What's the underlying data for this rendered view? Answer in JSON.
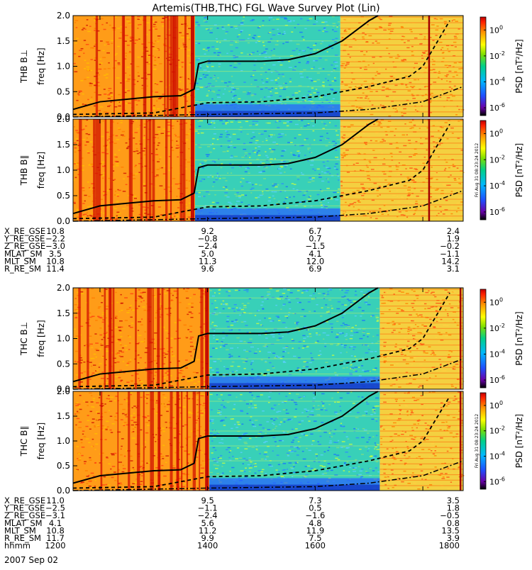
{
  "title": "Artemis(THB,THC) FGL Wave Survey Plot (Lin)",
  "date_label": "2007 Sep 02",
  "stamp": "Fri Aug 31 08:23:24 2012",
  "colorbar": {
    "label": "PSD [nT²/Hz]",
    "ticks": [
      {
        "exp": "0",
        "value": 1
      },
      {
        "exp": "-2",
        "value": 0.01
      },
      {
        "exp": "-4",
        "value": 0.0001
      },
      {
        "exp": "-6",
        "value": 1e-06
      }
    ]
  },
  "chart_data": [
    {
      "type": "heatmap",
      "probe": "THB",
      "component": "B⊥",
      "ylabel": "freq [Hz]",
      "panel_label": "THB B⊥",
      "ylim": [
        0,
        2
      ],
      "yticks": [
        "0.0",
        "0.5",
        "1.0",
        "1.5",
        "2.0"
      ],
      "xlim_hhmm": [
        1130,
        1845
      ],
      "fc_curve": {
        "x_hhmm": [
          1130,
          1200,
          1230,
          1300,
          1330,
          1345,
          1350,
          1400,
          1430,
          1500,
          1530,
          1600,
          1630,
          1700,
          1710
        ],
        "y": [
          0.15,
          0.3,
          0.35,
          0.4,
          0.42,
          0.55,
          1.05,
          1.1,
          1.1,
          1.1,
          1.13,
          1.25,
          1.5,
          1.9,
          2.0
        ]
      },
      "fc_half_curve": {
        "x_hhmm": [
          1130,
          1300,
          1400,
          1500,
          1600,
          1700,
          1745,
          1800,
          1830
        ],
        "y": [
          0.05,
          0.08,
          0.28,
          0.3,
          0.4,
          0.6,
          0.8,
          1.0,
          1.9
        ]
      },
      "fc_low_curve": {
        "x_hhmm": [
          1130,
          1400,
          1600,
          1700,
          1800,
          1845
        ],
        "y": [
          0.0,
          0.05,
          0.08,
          0.15,
          0.3,
          0.6
        ]
      }
    },
    {
      "type": "heatmap",
      "probe": "THB",
      "component": "B∥",
      "ylabel": "freq [Hz]",
      "panel_label": "THB B∥",
      "ylim": [
        0,
        2
      ],
      "yticks": [
        "0.0",
        "0.5",
        "1.0",
        "1.5",
        "2.0"
      ],
      "xlim_hhmm": [
        1130,
        1845
      ]
    },
    {
      "type": "heatmap",
      "probe": "THC",
      "component": "B⊥",
      "ylabel": "freq [Hz]",
      "panel_label": "THC B⊥",
      "ylim": [
        0,
        2
      ],
      "yticks": [
        "0.0",
        "0.5",
        "1.0",
        "1.5",
        "2.0"
      ],
      "xlim_hhmm": [
        1130,
        1845
      ]
    },
    {
      "type": "heatmap",
      "probe": "THC",
      "component": "B∥",
      "ylabel": "freq [Hz]",
      "panel_label": "THC B∥",
      "ylim": [
        0,
        2
      ],
      "yticks": [
        "0.0",
        "0.5",
        "1.0",
        "1.5",
        "2.0"
      ],
      "xlim_hhmm": [
        1130,
        1845
      ]
    }
  ],
  "orbit_tables": [
    {
      "rows": [
        {
          "name": "X_RE_GSE",
          "values": [
            "10.8",
            "9.2",
            "6.7",
            "2.4"
          ]
        },
        {
          "name": "Y_RE_GSE",
          "values": [
            "−2.2",
            "−0.8",
            "0.7",
            "1.9"
          ]
        },
        {
          "name": "Z_RE_GSE",
          "values": [
            "−3.0",
            "−2.4",
            "−1.5",
            "−0.2"
          ]
        },
        {
          "name": "MLAT_SM",
          "values": [
            "3.5",
            "5.0",
            "4.1",
            "−1.1"
          ]
        },
        {
          "name": "MLT_SM",
          "values": [
            "10.8",
            "11.3",
            "12.0",
            "14.2"
          ]
        },
        {
          "name": "R_RE_SM",
          "values": [
            "11.4",
            "9.6",
            "6.9",
            "3.1"
          ]
        }
      ]
    },
    {
      "rows": [
        {
          "name": "X_RE_GSE",
          "values": [
            "11.0",
            "9.5",
            "7.3",
            "3.5"
          ]
        },
        {
          "name": "Y_RE_GSE",
          "values": [
            "−2.5",
            "−1.1",
            "0.5",
            "1.8"
          ]
        },
        {
          "name": "Z_RE_GSE",
          "values": [
            "−3.1",
            "−2.4",
            "−1.6",
            "−0.5"
          ]
        },
        {
          "name": "MLAT_SM",
          "values": [
            "4.1",
            "5.6",
            "4.8",
            "0.8"
          ]
        },
        {
          "name": "MLT_SM",
          "values": [
            "10.8",
            "11.2",
            "11.9",
            "13.5"
          ]
        },
        {
          "name": "R_RE_SM",
          "values": [
            "11.7",
            "9.9",
            "7.5",
            "3.9"
          ]
        },
        {
          "name": "hhmm",
          "values": [
            "1200",
            "1400",
            "1600",
            "1800"
          ]
        }
      ]
    }
  ]
}
